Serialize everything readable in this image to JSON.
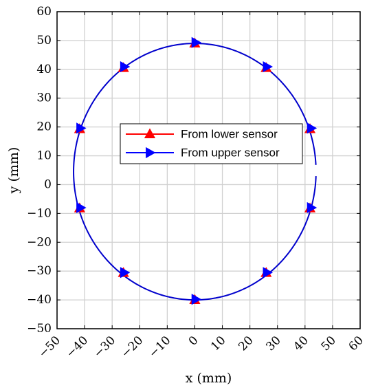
{
  "chart_data": {
    "type": "line",
    "xlabel": "x (mm)",
    "ylabel": "y (mm)",
    "xlim": [
      -50,
      60
    ],
    "ylim": [
      -50,
      60
    ],
    "xticks": [
      -50,
      -40,
      -30,
      -20,
      -10,
      0,
      10,
      20,
      30,
      40,
      50,
      60
    ],
    "yticks": [
      -50,
      -40,
      -30,
      -20,
      -10,
      0,
      10,
      20,
      30,
      40,
      50,
      60
    ],
    "xtick_labels": [
      "−50",
      "−40",
      "−30",
      "−20",
      "−10",
      "0",
      "10",
      "20",
      "30",
      "40",
      "50",
      "60"
    ],
    "ytick_labels": [
      "−50",
      "−40",
      "−30",
      "−20",
      "−10",
      "0",
      "10",
      "20",
      "30",
      "40",
      "50",
      "60"
    ],
    "grid": true,
    "legend_position": "center",
    "trajectory": {
      "shape": "circle",
      "center": [
        0,
        4.5
      ],
      "radius_x": 44,
      "radius_y": 44.5,
      "start_angle_deg": 3,
      "end_angle_deg": 358
    },
    "series": [
      {
        "name": "From lower sensor",
        "color": "#ff0000",
        "marker": "triangle-up",
        "x": [
          0,
          25.9,
          41.8,
          41.8,
          25.9,
          0,
          -25.9,
          -41.8,
          -41.8,
          -25.9
        ],
        "y": [
          49.0,
          40.5,
          19.3,
          -8.2,
          -30.6,
          -40.0,
          -30.6,
          -8.2,
          19.3,
          40.5
        ]
      },
      {
        "name": "From upper sensor",
        "color": "#0000ff",
        "marker": "triangle-right",
        "x": [
          0.3,
          26.2,
          42.2,
          42.2,
          26.2,
          0.3,
          -25.6,
          -41.5,
          -41.5,
          -25.6
        ],
        "y": [
          49.3,
          40.9,
          19.6,
          -8.0,
          -30.5,
          -39.8,
          -30.5,
          -8.0,
          19.6,
          40.9
        ]
      }
    ]
  }
}
